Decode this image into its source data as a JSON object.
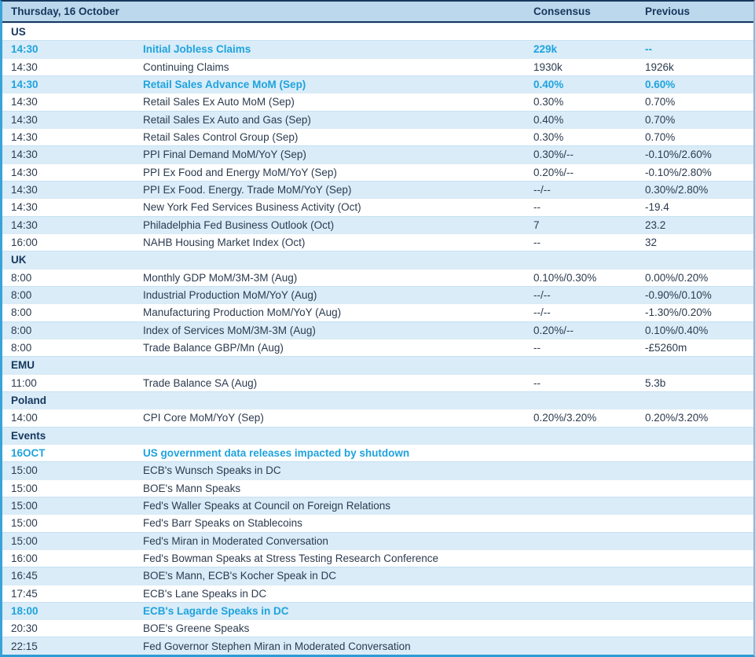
{
  "table": {
    "title": "Thursday, 16 October",
    "columns": {
      "consensus": "Consensus",
      "previous": "Previous"
    },
    "colors": {
      "header_bg": "#bcd8ec",
      "stripe_bg": "#d9ecf8",
      "text": "#2c3b4f",
      "navy": "#17375e",
      "highlight": "#1fa3dd",
      "outer_border": "#39a3d8"
    },
    "sections": [
      {
        "name": "US",
        "rows": [
          {
            "time": "14:30",
            "event": "Initial Jobless Claims",
            "consensus": "229k",
            "previous": "--",
            "highlight": true
          },
          {
            "time": "14:30",
            "event": "Continuing Claims",
            "consensus": "1930k",
            "previous": "1926k",
            "highlight": false
          },
          {
            "time": "14:30",
            "event": "Retail Sales Advance MoM (Sep)",
            "consensus": "0.40%",
            "previous": "0.60%",
            "highlight": true
          },
          {
            "time": "14:30",
            "event": "Retail Sales Ex Auto MoM (Sep)",
            "consensus": "0.30%",
            "previous": "0.70%",
            "highlight": false
          },
          {
            "time": "14:30",
            "event": "Retail Sales Ex Auto and Gas (Sep)",
            "consensus": "0.40%",
            "previous": "0.70%",
            "highlight": false
          },
          {
            "time": "14:30",
            "event": "Retail Sales Control Group (Sep)",
            "consensus": "0.30%",
            "previous": "0.70%",
            "highlight": false
          },
          {
            "time": "14:30",
            "event": "PPI Final Demand MoM/YoY (Sep)",
            "consensus": "0.30%/--",
            "previous": "-0.10%/2.60%",
            "highlight": false
          },
          {
            "time": "14:30",
            "event": "PPI Ex Food and Energy MoM/YoY (Sep)",
            "consensus": "0.20%/--",
            "previous": "-0.10%/2.80%",
            "highlight": false
          },
          {
            "time": "14:30",
            "event": "PPI Ex Food. Energy. Trade MoM/YoY (Sep)",
            "consensus": "--/--",
            "previous": "0.30%/2.80%",
            "highlight": false
          },
          {
            "time": "14:30",
            "event": "New York Fed Services Business Activity (Oct)",
            "consensus": "--",
            "previous": "-19.4",
            "highlight": false
          },
          {
            "time": "14:30",
            "event": "Philadelphia Fed Business Outlook (Oct)",
            "consensus": "7",
            "previous": "23.2",
            "highlight": false
          },
          {
            "time": "16:00",
            "event": "NAHB Housing Market Index (Oct)",
            "consensus": "--",
            "previous": "32",
            "highlight": false
          }
        ]
      },
      {
        "name": "UK",
        "rows": [
          {
            "time": "8:00",
            "event": "Monthly GDP MoM/3M-3M (Aug)",
            "consensus": "0.10%/0.30%",
            "previous": "0.00%/0.20%",
            "highlight": false
          },
          {
            "time": "8:00",
            "event": "Industrial Production MoM/YoY (Aug)",
            "consensus": "--/--",
            "previous": "-0.90%/0.10%",
            "highlight": false
          },
          {
            "time": "8:00",
            "event": "Manufacturing Production MoM/YoY (Aug)",
            "consensus": "--/--",
            "previous": "-1.30%/0.20%",
            "highlight": false
          },
          {
            "time": "8:00",
            "event": "Index of Services MoM/3M-3M (Aug)",
            "consensus": "0.20%/--",
            "previous": "0.10%/0.40%",
            "highlight": false
          },
          {
            "time": "8:00",
            "event": "Trade Balance GBP/Mn (Aug)",
            "consensus": "--",
            "previous": "-£5260m",
            "highlight": false
          }
        ]
      },
      {
        "name": "EMU",
        "rows": [
          {
            "time": "11:00",
            "event": "Trade Balance SA (Aug)",
            "consensus": "--",
            "previous": "5.3b",
            "highlight": false
          }
        ]
      },
      {
        "name": "Poland",
        "rows": [
          {
            "time": "14:00",
            "event": "CPI Core MoM/YoY (Sep)",
            "consensus": "0.20%/3.20%",
            "previous": "0.20%/3.20%",
            "highlight": false
          }
        ]
      },
      {
        "name": "Events",
        "rows": [
          {
            "time": "16OCT",
            "event": "US government data releases impacted by shutdown",
            "consensus": "",
            "previous": "",
            "highlight": true
          },
          {
            "time": "15:00",
            "event": "ECB's Wunsch Speaks in DC",
            "consensus": "",
            "previous": "",
            "highlight": false
          },
          {
            "time": "15:00",
            "event": "BOE's Mann Speaks",
            "consensus": "",
            "previous": "",
            "highlight": false
          },
          {
            "time": "15:00",
            "event": "Fed's Waller Speaks at Council on Foreign Relations",
            "consensus": "",
            "previous": "",
            "highlight": false
          },
          {
            "time": "15:00",
            "event": "Fed's Barr Speaks on Stablecoins",
            "consensus": "",
            "previous": "",
            "highlight": false
          },
          {
            "time": "15:00",
            "event": "Fed's Miran in Moderated Conversation",
            "consensus": "",
            "previous": "",
            "highlight": false
          },
          {
            "time": "16:00",
            "event": "Fed's Bowman Speaks at Stress Testing Research Conference",
            "consensus": "",
            "previous": "",
            "highlight": false
          },
          {
            "time": "16:45",
            "event": "BOE's Mann, ECB's Kocher Speak in DC",
            "consensus": "",
            "previous": "",
            "highlight": false
          },
          {
            "time": "17:45",
            "event": "ECB's Lane Speaks in DC",
            "consensus": "",
            "previous": "",
            "highlight": false
          },
          {
            "time": "18:00",
            "event": "ECB's Lagarde Speaks in DC",
            "consensus": "",
            "previous": "",
            "highlight": true
          },
          {
            "time": "20:30",
            "event": "BOE's Greene Speaks",
            "consensus": "",
            "previous": "",
            "highlight": false
          },
          {
            "time": "22:15",
            "event": "Fed Governor Stephen Miran in Moderated Conversation",
            "consensus": "",
            "previous": "",
            "highlight": false
          }
        ]
      }
    ]
  }
}
